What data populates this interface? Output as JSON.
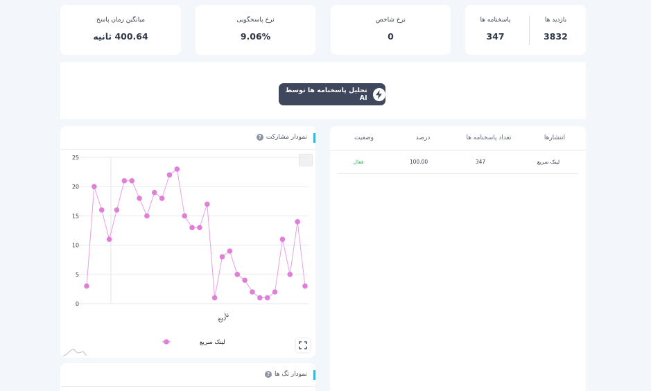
{
  "stats": {
    "visits_label": "بازدید ها",
    "visits_value": "3832",
    "responses_label": "پاسخنامه ها",
    "responses_value": "347",
    "index_rate_label": "نرخ شاخص",
    "index_rate_value": "0",
    "response_rate_label": "نرخ پاسخگویی",
    "response_rate_value": "9.06%",
    "avg_time_label": "میانگین زمان پاسخ",
    "avg_time_value": "400.64 ثانیه"
  },
  "ai": {
    "button_label": "تحلیل پاسخنامه ها توسط AI",
    "icon": "lightning-bolt-icon"
  },
  "participation_chart": {
    "title": "نمودار مشارکت",
    "help_icon": "question-circle-icon",
    "expand_icon": "fullscreen-icon"
  },
  "chart_data": {
    "type": "line",
    "xlabel": "تاریخ",
    "ylabel": "",
    "ylim": [
      0,
      25
    ],
    "yticks": [
      "0",
      "5",
      "10",
      "15",
      "20",
      "25"
    ],
    "grid": true,
    "legend_position": "bottom",
    "series": [
      {
        "name": "لینک سریع",
        "color": "#e07fd9",
        "values": [
          3,
          20,
          16,
          11,
          16,
          21,
          21,
          18,
          15,
          19,
          18,
          22,
          23,
          15,
          13,
          13,
          17,
          1,
          8,
          9,
          5,
          4,
          2,
          1,
          1,
          2,
          11,
          5,
          14,
          3
        ]
      }
    ]
  },
  "tags_chart": {
    "title": "نمودار تگ ها",
    "help_icon": "question-circle-icon"
  },
  "publications_table": {
    "headers": [
      "انتشارها",
      "تعداد پاسخنامه ها",
      "درصد",
      "وضعیت"
    ],
    "rows": [
      {
        "name": "لینک سریع",
        "count": "347",
        "percent": "100.00",
        "status": "فعال"
      }
    ]
  }
}
